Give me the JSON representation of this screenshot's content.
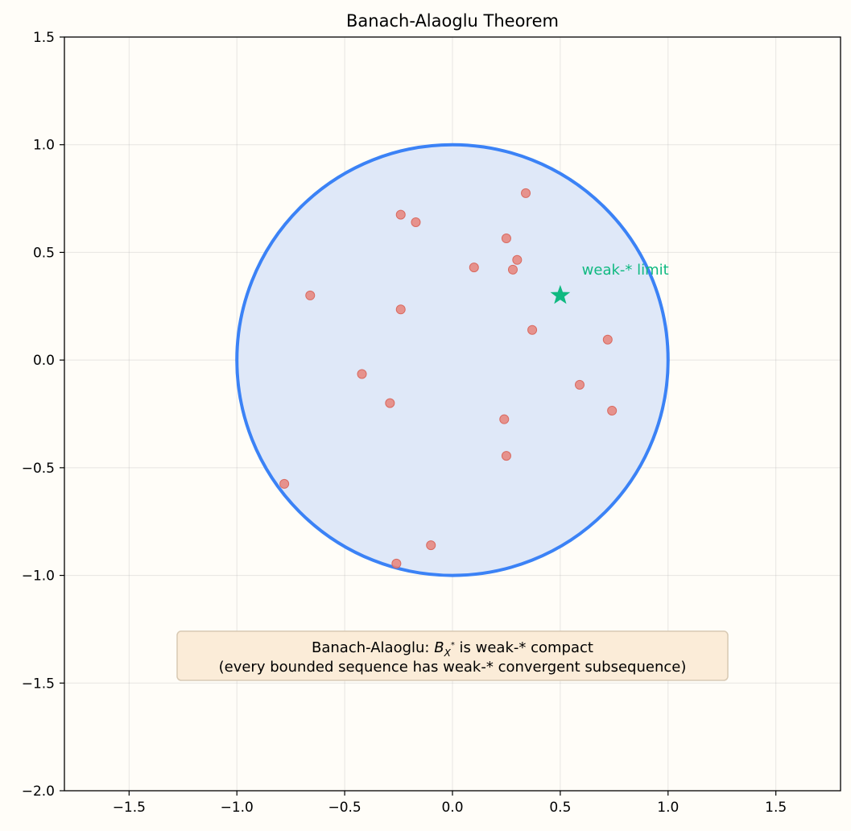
{
  "chart_data": {
    "type": "scatter",
    "title": "Banach-Alaoglu Theorem",
    "xlim": [
      -1.8,
      1.8
    ],
    "ylim": [
      -2.0,
      1.5
    ],
    "x_ticks": [
      -1.5,
      -1.0,
      -0.5,
      0.0,
      0.5,
      1.0,
      1.5
    ],
    "y_ticks": [
      -2.0,
      -1.5,
      -1.0,
      -0.5,
      0.0,
      0.5,
      1.0,
      1.5
    ],
    "x_tick_labels": [
      "−1.5",
      "−1.0",
      "−0.5",
      "0.0",
      "0.5",
      "1.0",
      "1.5"
    ],
    "y_tick_labels": [
      "−2.0",
      "−1.5",
      "−1.0",
      "−0.5",
      "0.0",
      "0.5",
      "1.0",
      "1.5"
    ],
    "grid": true,
    "unit_ball": {
      "center": [
        0,
        0
      ],
      "radius": 1.0,
      "stroke": "#3b82f6",
      "fill": "#dfe8f8"
    },
    "sequence_points": {
      "color": "#e8837a",
      "points": [
        [
          0.34,
          0.775
        ],
        [
          -0.24,
          0.675
        ],
        [
          -0.17,
          0.64
        ],
        [
          0.25,
          0.565
        ],
        [
          0.3,
          0.465
        ],
        [
          0.1,
          0.43
        ],
        [
          0.28,
          0.42
        ],
        [
          -0.66,
          0.3
        ],
        [
          -0.24,
          0.235
        ],
        [
          0.37,
          0.14
        ],
        [
          0.72,
          0.095
        ],
        [
          -0.42,
          -0.065
        ],
        [
          0.59,
          -0.115
        ],
        [
          -0.29,
          -0.2
        ],
        [
          0.74,
          -0.235
        ],
        [
          0.24,
          -0.275
        ],
        [
          0.25,
          -0.445
        ],
        [
          -0.78,
          -0.575
        ],
        [
          -0.1,
          -0.86
        ],
        [
          -0.26,
          -0.945
        ]
      ]
    },
    "limit_point": {
      "x": 0.5,
      "y": 0.3,
      "color": "#10b981"
    },
    "annotations": {
      "limit_label": {
        "text": "weak-* limit",
        "x": 0.6,
        "y": 0.42,
        "color": "#10b981"
      },
      "note": {
        "line1_prefix": "Banach-Alaoglu: ",
        "line1_math_main": "B",
        "line1_math_sub": "X",
        "line1_math_sup": "*",
        "line1_suffix": " is weak-* compact",
        "line2": "(every bounded sequence has weak-* convergent subsequence)",
        "x": 0.0,
        "y": -1.42,
        "box_fill": "#fbecd8",
        "box_stroke": "#d8c9b3"
      }
    }
  }
}
